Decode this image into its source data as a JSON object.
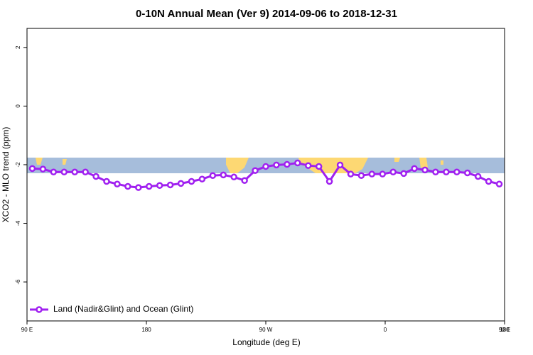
{
  "chart_data": {
    "type": "line",
    "title": "0-10N Annual Mean (Ver 9)   2014-09-06 to 2018-12-31",
    "xlabel": "Longitude (deg E)",
    "ylabel": "XCO2 - MLO trend (ppm)",
    "x": [
      94,
      102,
      110,
      118,
      126,
      134,
      142,
      150,
      158,
      166,
      174,
      182,
      190,
      198,
      206,
      214,
      222,
      230,
      238,
      246,
      254,
      262,
      270,
      278,
      286,
      294,
      302,
      310,
      318,
      326,
      334,
      342,
      350,
      358,
      366,
      374,
      382,
      390,
      398,
      406,
      414,
      422,
      430,
      438,
      446
    ],
    "series": [
      {
        "name": "Land (Nadir&Glint) and Ocean (Glint)",
        "color": "#a020f0",
        "values": [
          -2.13,
          -2.15,
          -2.25,
          -2.25,
          -2.25,
          -2.25,
          -2.4,
          -2.57,
          -2.66,
          -2.74,
          -2.78,
          -2.74,
          -2.71,
          -2.69,
          -2.64,
          -2.57,
          -2.49,
          -2.37,
          -2.35,
          -2.42,
          -2.54,
          -2.2,
          -2.06,
          -2.01,
          -1.99,
          -1.94,
          -2.03,
          -2.06,
          -2.57,
          -2.01,
          -2.32,
          -2.37,
          -2.32,
          -2.32,
          -2.25,
          -2.3,
          -2.13,
          -2.18,
          -2.25,
          -2.25,
          -2.25,
          -2.28,
          -2.4,
          -2.57,
          -2.66
        ]
      }
    ],
    "xlim": [
      90,
      450
    ],
    "xticks": [
      {
        "value": 90,
        "label": "90 E"
      },
      180,
      {
        "value": 270,
        "label": "90 W"
      },
      {
        "value": 360,
        "label": "0"
      },
      {
        "value": 450,
        "label": "90 E"
      },
      {
        "value": 540,
        "label": "180"
      }
    ],
    "ylim": [
      -7.33,
      2.65
    ],
    "yticks": [
      2,
      0,
      -2,
      -4,
      -6
    ],
    "legend": "lower left"
  }
}
